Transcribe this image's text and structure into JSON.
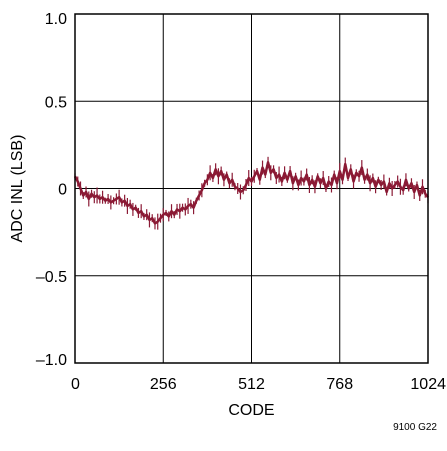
{
  "chart_data": {
    "type": "line",
    "title": "",
    "xlabel": "CODE",
    "ylabel": "ADC INL (LSB)",
    "xlim": [
      0,
      1024
    ],
    "ylim": [
      -1.0,
      1.0
    ],
    "grid": true,
    "x_ticks": [
      {
        "value": 0,
        "label": "0"
      },
      {
        "value": 256,
        "label": "256"
      },
      {
        "value": 512,
        "label": "512"
      },
      {
        "value": 768,
        "label": "768"
      },
      {
        "value": 1024,
        "label": "1024"
      }
    ],
    "y_ticks": [
      {
        "value": 1.0,
        "label": "1.0"
      },
      {
        "value": 0.5,
        "label": "0.5"
      },
      {
        "value": 0,
        "label": "0"
      },
      {
        "value": -0.5,
        "label": "–0.5"
      },
      {
        "value": -1.0,
        "label": "–1.0"
      }
    ],
    "series": [
      {
        "color": "#8b1a35",
        "x": [
          0,
          8,
          16,
          24,
          32,
          40,
          48,
          56,
          64,
          72,
          80,
          88,
          96,
          104,
          112,
          120,
          128,
          136,
          144,
          152,
          160,
          168,
          176,
          184,
          192,
          200,
          208,
          216,
          224,
          232,
          240,
          248,
          256,
          264,
          272,
          280,
          288,
          296,
          304,
          312,
          320,
          328,
          336,
          344,
          352,
          360,
          368,
          376,
          384,
          392,
          400,
          408,
          416,
          424,
          432,
          440,
          448,
          456,
          464,
          472,
          480,
          488,
          496,
          504,
          512,
          520,
          528,
          536,
          544,
          552,
          560,
          568,
          576,
          584,
          592,
          600,
          608,
          616,
          624,
          632,
          640,
          648,
          656,
          664,
          672,
          680,
          688,
          696,
          704,
          712,
          720,
          728,
          736,
          744,
          752,
          760,
          768,
          776,
          784,
          792,
          800,
          808,
          816,
          824,
          832,
          840,
          848,
          856,
          864,
          872,
          880,
          888,
          896,
          904,
          912,
          920,
          928,
          936,
          944,
          952,
          960,
          968,
          976,
          984,
          992,
          1000,
          1008,
          1016,
          1024
        ],
        "values": [
          0.07,
          0.04,
          0.0,
          -0.04,
          -0.02,
          -0.06,
          -0.03,
          -0.05,
          -0.04,
          -0.06,
          -0.05,
          -0.07,
          -0.06,
          -0.08,
          -0.07,
          -0.06,
          -0.05,
          -0.08,
          -0.07,
          -0.1,
          -0.09,
          -0.12,
          -0.11,
          -0.14,
          -0.13,
          -0.16,
          -0.15,
          -0.18,
          -0.17,
          -0.2,
          -0.19,
          -0.17,
          -0.15,
          -0.14,
          -0.16,
          -0.13,
          -0.15,
          -0.12,
          -0.13,
          -0.11,
          -0.12,
          -0.1,
          -0.09,
          -0.11,
          -0.07,
          -0.04,
          -0.01,
          0.03,
          0.05,
          0.09,
          0.06,
          0.11,
          0.07,
          0.1,
          0.05,
          0.08,
          0.03,
          0.05,
          0.01,
          0.0,
          -0.02,
          -0.01,
          0.02,
          0.06,
          0.04,
          0.07,
          0.1,
          0.05,
          0.12,
          0.08,
          0.15,
          0.09,
          0.11,
          0.06,
          0.08,
          0.04,
          0.09,
          0.05,
          0.1,
          0.03,
          0.07,
          0.02,
          0.06,
          0.04,
          0.08,
          0.02,
          0.05,
          0.01,
          0.07,
          0.03,
          0.06,
          0.0,
          0.04,
          0.02,
          0.08,
          0.03,
          0.1,
          0.05,
          0.14,
          0.06,
          0.11,
          0.04,
          0.09,
          0.07,
          0.12,
          0.05,
          0.08,
          0.03,
          0.06,
          0.01,
          0.05,
          0.02,
          0.04,
          -0.02,
          0.03,
          0.0,
          0.02,
          0.04,
          0.01,
          -0.01,
          0.05,
          0.0,
          0.03,
          -0.02,
          0.02,
          -0.04,
          0.01,
          -0.03,
          -0.05
        ]
      }
    ]
  },
  "figure_code": "9100 G22"
}
